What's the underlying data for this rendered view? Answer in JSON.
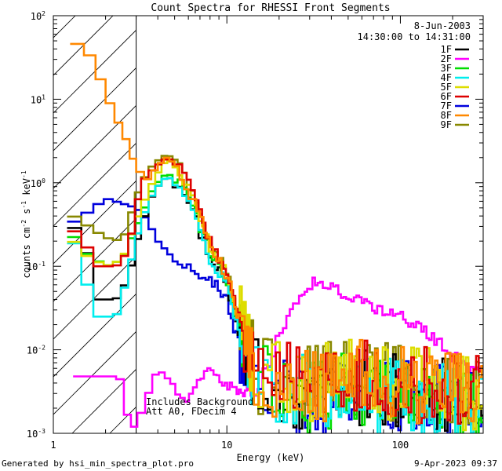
{
  "chart_data": {
    "type": "line",
    "title": "Count Spectra for RHESSI Front Segments",
    "xlabel": "Energy (keV)",
    "ylabel_parts": [
      "counts cm",
      "-2",
      " s",
      "-1",
      " keV",
      "-1"
    ],
    "xscale": "log",
    "yscale": "log",
    "xlim": [
      1,
      300
    ],
    "ylim": [
      0.001,
      100
    ],
    "x_ticks": [
      {
        "value": 1,
        "label": "1"
      },
      {
        "value": 10,
        "label": "10"
      },
      {
        "value": 100,
        "label": "100"
      }
    ],
    "y_ticks": [
      {
        "value": 0.001,
        "base": "10",
        "exp": "-3"
      },
      {
        "value": 0.01,
        "base": "10",
        "exp": "-2"
      },
      {
        "value": 0.1,
        "base": "10",
        "exp": "-1"
      },
      {
        "value": 1,
        "base": "10",
        "exp": "0"
      },
      {
        "value": 10,
        "base": "10",
        "exp": "1"
      },
      {
        "value": 100,
        "base": "10",
        "exp": "2"
      }
    ],
    "hatched_region_keV": [
      1,
      3
    ],
    "header_lines": [
      "8-Jun-2003",
      "14:30:00 to 14:31:00"
    ],
    "annotations": [
      "Includes Background",
      "Att A0, FDecim 4"
    ],
    "series": [
      {
        "name": "1F",
        "color": "#000000",
        "knots": [
          [
            1.2,
            0.35
          ],
          [
            1.5,
            0.22
          ],
          [
            1.8,
            0.04
          ],
          [
            2.3,
            0.04
          ],
          [
            2.7,
            0.07
          ],
          [
            3.2,
            0.3
          ],
          [
            3.8,
            0.8
          ],
          [
            4.5,
            1.2
          ],
          [
            5.2,
            1.0
          ],
          [
            6.5,
            0.4
          ],
          [
            8,
            0.12
          ],
          [
            10,
            0.06
          ],
          [
            12,
            0.012
          ],
          [
            15,
            0.004
          ],
          [
            30,
            0.003
          ],
          [
            60,
            0.0035
          ],
          [
            100,
            0.003
          ],
          [
            160,
            0.0028
          ],
          [
            240,
            0.0025
          ],
          [
            300,
            0.0022
          ]
        ]
      },
      {
        "name": "2F",
        "color": "#ff00ff",
        "knots": [
          [
            1.3,
            0.0048
          ],
          [
            2.3,
            0.0048
          ],
          [
            2.6,
            0.004
          ],
          [
            2.7,
            0.0012
          ],
          [
            3,
            0.0012
          ],
          [
            4,
            0.006
          ],
          [
            6,
            0.0025
          ],
          [
            8,
            0.006
          ],
          [
            10,
            0.0035
          ],
          [
            15,
            0.003
          ],
          [
            20,
            0.015
          ],
          [
            25,
            0.04
          ],
          [
            32,
            0.065
          ],
          [
            40,
            0.055
          ],
          [
            50,
            0.045
          ],
          [
            70,
            0.032
          ],
          [
            100,
            0.025
          ],
          [
            130,
            0.018
          ],
          [
            170,
            0.012
          ],
          [
            210,
            0.008
          ],
          [
            260,
            0.006
          ],
          [
            300,
            0.005
          ]
        ]
      },
      {
        "name": "3F",
        "color": "#00dd00",
        "knots": [
          [
            1.2,
            0.3
          ],
          [
            1.5,
            0.15
          ],
          [
            2.0,
            0.1
          ],
          [
            2.5,
            0.12
          ],
          [
            3.2,
            0.4
          ],
          [
            3.8,
            0.9
          ],
          [
            4.5,
            1.3
          ],
          [
            5.2,
            1.1
          ],
          [
            6.5,
            0.45
          ],
          [
            8,
            0.14
          ],
          [
            10,
            0.07
          ],
          [
            12,
            0.015
          ],
          [
            15,
            0.004
          ],
          [
            30,
            0.003
          ],
          [
            60,
            0.0032
          ],
          [
            100,
            0.0028
          ],
          [
            160,
            0.0025
          ],
          [
            240,
            0.0022
          ],
          [
            300,
            0.0018
          ]
        ]
      },
      {
        "name": "4F",
        "color": "#00eeee",
        "knots": [
          [
            1.2,
            0.3
          ],
          [
            1.5,
            0.1
          ],
          [
            1.7,
            0.025
          ],
          [
            2.3,
            0.025
          ],
          [
            2.6,
            0.06
          ],
          [
            3.2,
            0.35
          ],
          [
            3.8,
            0.8
          ],
          [
            4.5,
            1.2
          ],
          [
            5.2,
            1.0
          ],
          [
            6.5,
            0.4
          ],
          [
            8,
            0.12
          ],
          [
            10,
            0.06
          ],
          [
            12,
            0.013
          ],
          [
            15,
            0.004
          ],
          [
            30,
            0.0028
          ],
          [
            60,
            0.003
          ],
          [
            100,
            0.0028
          ],
          [
            160,
            0.0025
          ],
          [
            240,
            0.0022
          ],
          [
            300,
            0.002
          ]
        ]
      },
      {
        "name": "5F",
        "color": "#dddd00",
        "knots": [
          [
            1.2,
            0.25
          ],
          [
            1.5,
            0.14
          ],
          [
            2.0,
            0.1
          ],
          [
            2.5,
            0.12
          ],
          [
            3.2,
            0.5
          ],
          [
            3.8,
            1.1
          ],
          [
            4.5,
            1.9
          ],
          [
            5.2,
            1.6
          ],
          [
            6.5,
            0.6
          ],
          [
            8,
            0.18
          ],
          [
            10,
            0.08
          ],
          [
            12,
            0.02
          ],
          [
            15,
            0.005
          ],
          [
            30,
            0.004
          ],
          [
            60,
            0.0045
          ],
          [
            100,
            0.004
          ],
          [
            160,
            0.0035
          ],
          [
            240,
            0.003
          ],
          [
            300,
            0.0028
          ]
        ]
      },
      {
        "name": "6F",
        "color": "#dd0000",
        "knots": [
          [
            1.2,
            0.32
          ],
          [
            1.5,
            0.2
          ],
          [
            1.8,
            0.1
          ],
          [
            2.3,
            0.1
          ],
          [
            2.7,
            0.15
          ],
          [
            3.2,
            1.0
          ],
          [
            3.8,
            1.5
          ],
          [
            4.5,
            2.0
          ],
          [
            5.2,
            1.7
          ],
          [
            6.5,
            0.7
          ],
          [
            8,
            0.2
          ],
          [
            10,
            0.09
          ],
          [
            12,
            0.02
          ],
          [
            15,
            0.005
          ],
          [
            30,
            0.004
          ],
          [
            60,
            0.0045
          ],
          [
            100,
            0.004
          ],
          [
            160,
            0.0035
          ],
          [
            240,
            0.003
          ],
          [
            300,
            0.0028
          ]
        ]
      },
      {
        "name": "7F",
        "color": "#0000dd",
        "knots": [
          [
            1.2,
            0.3
          ],
          [
            1.6,
            0.45
          ],
          [
            2.0,
            0.65
          ],
          [
            2.6,
            0.55
          ],
          [
            3.0,
            0.5
          ],
          [
            3.5,
            0.35
          ],
          [
            4.0,
            0.2
          ],
          [
            5.0,
            0.12
          ],
          [
            6.5,
            0.08
          ],
          [
            8,
            0.07
          ],
          [
            10,
            0.04
          ],
          [
            12,
            0.01
          ],
          [
            15,
            0.003
          ],
          [
            30,
            0.0025
          ],
          [
            60,
            0.0028
          ],
          [
            100,
            0.0026
          ],
          [
            160,
            0.0024
          ],
          [
            240,
            0.0022
          ],
          [
            300,
            0.002
          ]
        ]
      },
      {
        "name": "8F",
        "color": "#ff8800",
        "knots": [
          [
            1.25,
            47
          ],
          [
            1.5,
            45
          ],
          [
            1.75,
            25
          ],
          [
            2.0,
            12
          ],
          [
            2.3,
            6
          ],
          [
            2.6,
            3.5
          ],
          [
            3.0,
            1.5
          ],
          [
            3.5,
            1.1
          ],
          [
            4.0,
            1.6
          ],
          [
            4.5,
            2.0
          ],
          [
            5.2,
            1.6
          ],
          [
            6.5,
            0.6
          ],
          [
            8,
            0.18
          ],
          [
            10,
            0.08
          ],
          [
            12,
            0.02
          ],
          [
            15,
            0.005
          ],
          [
            30,
            0.004
          ],
          [
            60,
            0.0045
          ],
          [
            100,
            0.004
          ],
          [
            160,
            0.0035
          ],
          [
            240,
            0.003
          ],
          [
            300,
            0.0028
          ]
        ]
      },
      {
        "name": "9F",
        "color": "#888800",
        "knots": [
          [
            1.2,
            0.45
          ],
          [
            1.6,
            0.3
          ],
          [
            2.0,
            0.22
          ],
          [
            2.5,
            0.2
          ],
          [
            3.2,
            1.0
          ],
          [
            3.8,
            1.7
          ],
          [
            4.5,
            2.2
          ],
          [
            5.2,
            1.8
          ],
          [
            6.5,
            0.7
          ],
          [
            8,
            0.2
          ],
          [
            10,
            0.09
          ],
          [
            12,
            0.02
          ],
          [
            15,
            0.005
          ],
          [
            30,
            0.004
          ],
          [
            60,
            0.0045
          ],
          [
            100,
            0.004
          ],
          [
            160,
            0.0035
          ],
          [
            240,
            0.003
          ],
          [
            300,
            0.0028
          ]
        ]
      }
    ]
  },
  "footer": {
    "generated_by": "Generated by hsi_min_spectra_plot.pro",
    "timestamp": "9-Apr-2023 09:37"
  }
}
